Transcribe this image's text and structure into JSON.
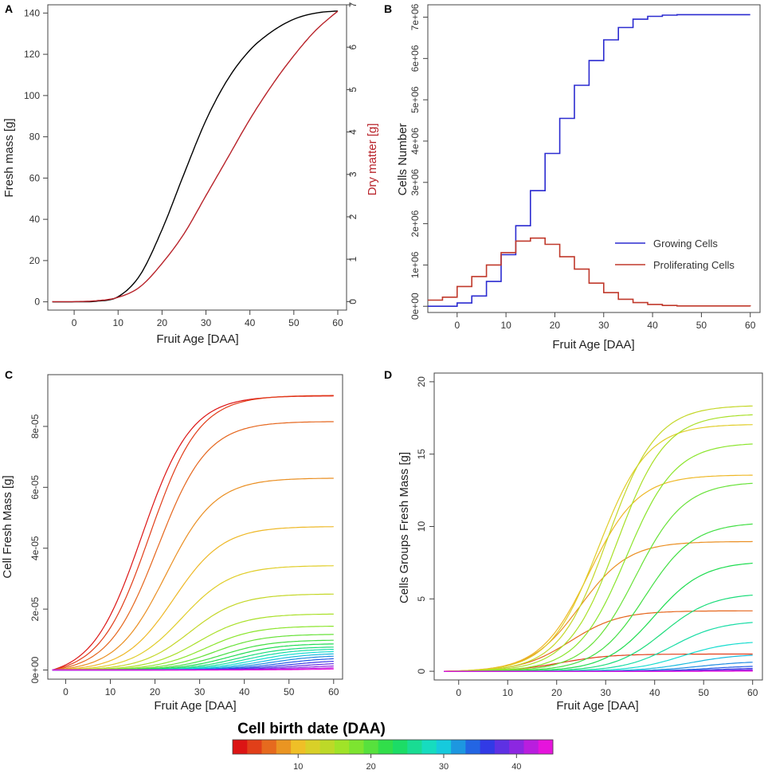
{
  "colors": {
    "black": "#000000",
    "red": "#b8232a",
    "blue": "#2b2bd0",
    "proliferating": "#c0392b"
  },
  "chart_data": [
    {
      "panel": "A",
      "type": "line",
      "xlabel": "Fruit Age [DAA]",
      "ylabel": "Fresh mass [g]",
      "ylabel_right": "Dry matter [g]",
      "xlim": [
        -6,
        62
      ],
      "ylim": [
        -4,
        144
      ],
      "ylim_right": [
        -0.2,
        7.0
      ],
      "xticks": [
        0,
        10,
        20,
        30,
        40,
        50,
        60
      ],
      "yticks": [
        0,
        20,
        40,
        60,
        80,
        100,
        120,
        140
      ],
      "yticks_right": [
        0,
        1,
        2,
        3,
        4,
        5,
        6,
        7
      ],
      "series": [
        {
          "name": "Fresh mass",
          "axis": "left",
          "color": "#000000",
          "x": [
            -5,
            0,
            5,
            10,
            15,
            20,
            25,
            30,
            35,
            40,
            45,
            50,
            55,
            60
          ],
          "y": [
            0,
            0,
            0.3,
            2.5,
            13,
            35,
            62,
            88,
            108,
            122,
            131,
            137,
            140,
            141
          ]
        },
        {
          "name": "Dry matter",
          "axis": "right",
          "color": "#b8232a",
          "x": [
            -5,
            0,
            5,
            10,
            15,
            20,
            25,
            30,
            35,
            40,
            45,
            50,
            55,
            60
          ],
          "y": [
            0,
            0,
            0.02,
            0.1,
            0.35,
            0.9,
            1.6,
            2.5,
            3.4,
            4.3,
            5.1,
            5.8,
            6.4,
            6.85
          ]
        }
      ]
    },
    {
      "panel": "B",
      "type": "line",
      "step": true,
      "xlabel": "Fruit Age [DAA]",
      "ylabel": "Cells Number",
      "xlim": [
        -6,
        62
      ],
      "ylim": [
        -150000,
        7300000
      ],
      "xticks": [
        0,
        10,
        20,
        30,
        40,
        50,
        60
      ],
      "yticks": [
        0,
        1000000,
        2000000,
        3000000,
        4000000,
        5000000,
        6000000,
        7000000
      ],
      "ytick_labels": [
        "0e+00",
        "1e+06",
        "2e+06",
        "3e+06",
        "4e+06",
        "5e+06",
        "6e+06",
        "7e+06"
      ],
      "legend": {
        "entries": [
          "Growing Cells",
          "Proliferating Cells"
        ]
      },
      "series": [
        {
          "name": "Growing Cells",
          "color": "#2b2bd0",
          "x": [
            -6,
            -3,
            0,
            3,
            6,
            9,
            12,
            15,
            18,
            21,
            24,
            27,
            30,
            33,
            36,
            39,
            42,
            45,
            60
          ],
          "y": [
            0,
            0,
            80000,
            250000,
            600000,
            1250000,
            1950000,
            2800000,
            3700000,
            4550000,
            5350000,
            5950000,
            6450000,
            6750000,
            6950000,
            7020000,
            7050000,
            7060000,
            7060000
          ]
        },
        {
          "name": "Proliferating Cells",
          "color": "#c0392b",
          "x": [
            -6,
            -3,
            0,
            3,
            6,
            9,
            12,
            15,
            18,
            21,
            24,
            27,
            30,
            33,
            36,
            39,
            42,
            45,
            60
          ],
          "y": [
            150000,
            220000,
            480000,
            720000,
            1000000,
            1300000,
            1580000,
            1650000,
            1500000,
            1200000,
            900000,
            560000,
            330000,
            170000,
            90000,
            45000,
            20000,
            8000,
            0
          ]
        }
      ]
    },
    {
      "panel": "C",
      "type": "line",
      "xlabel": "Fruit Age [DAA]",
      "ylabel": "Cell Fresh Mass [g]",
      "xlim": [
        -4,
        62
      ],
      "ylim": [
        -3e-06,
        9.7e-05
      ],
      "xticks": [
        0,
        10,
        20,
        30,
        40,
        50,
        60
      ],
      "yticks": [
        0,
        2e-05,
        4e-05,
        6e-05,
        8e-05
      ],
      "ytick_labels": [
        "0e+00",
        "2e-05",
        "4e-05",
        "6e-05",
        "8e-05"
      ],
      "colorbar_series": "Cell birth date (DAA)",
      "birth_dates": [
        1,
        3,
        5,
        7,
        9,
        11,
        13,
        15,
        17,
        19,
        21,
        23,
        25,
        27,
        29,
        31,
        33,
        35,
        37,
        39,
        41,
        43,
        45
      ],
      "final_values": [
        9.25e-05,
        9.2e-05,
        8.28e-05,
        6.37e-05,
        4.75e-05,
        3.45e-05,
        2.51e-05,
        1.85e-05,
        1.45e-05,
        1.18e-05,
        9.9e-06,
        8.7e-06,
        7.7e-06,
        7e-06,
        6.3e-06,
        5.6e-06,
        4.9e-06,
        4.1e-06,
        3.3e-06,
        2.5e-06,
        1.7e-06,
        1e-06,
        5e-07
      ]
    },
    {
      "panel": "D",
      "type": "line",
      "xlabel": "Fruit Age [DAA]",
      "ylabel": "Cells Groups Fresh Mass [g]",
      "xlim": [
        -5,
        62
      ],
      "ylim": [
        -0.6,
        20.6
      ],
      "xticks": [
        0,
        10,
        20,
        30,
        40,
        50,
        60
      ],
      "yticks": [
        0,
        5,
        10,
        15,
        20
      ],
      "birth_dates": [
        1,
        3,
        5,
        7,
        9,
        11,
        13,
        15,
        17,
        19,
        21,
        23,
        25,
        27,
        29,
        31,
        33,
        35,
        37,
        39,
        41,
        43,
        45
      ],
      "final_values": [
        0.02,
        1.2,
        4.2,
        9.0,
        13.6,
        17.1,
        18.4,
        17.8,
        15.8,
        13.1,
        10.3,
        7.6,
        5.4,
        3.5,
        2.1,
        1.2,
        0.7,
        0.4,
        0.25,
        0.15,
        0.1,
        0.06,
        0.03
      ]
    }
  ],
  "panels": {
    "a": "A",
    "b": "B",
    "c": "C",
    "d": "D"
  },
  "colorbar": {
    "title": "Cell birth date (DAA)",
    "ticks": [
      "10",
      "20",
      "30",
      "40"
    ],
    "tick_values": [
      10,
      20,
      30,
      40
    ],
    "range": [
      1,
      45
    ]
  }
}
